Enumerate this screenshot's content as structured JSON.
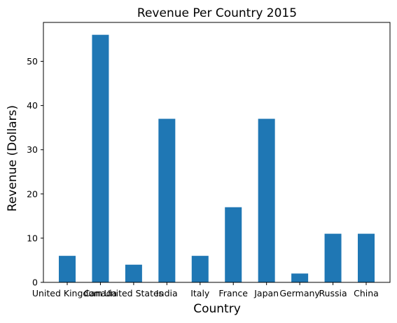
{
  "chart_data": {
    "type": "bar",
    "title": "Revenue Per Country 2015",
    "xlabel": "Country",
    "ylabel": "Revenue (Dollars)",
    "categories": [
      "United Kingdom",
      "Canada",
      "United States",
      "India",
      "Italy",
      "France",
      "Japan",
      "Germany",
      "Russia",
      "China"
    ],
    "values": [
      6,
      56,
      4,
      37,
      6,
      17,
      37,
      2,
      11,
      11
    ],
    "ylim": [
      0,
      58.8
    ],
    "yticks": [
      0,
      10,
      20,
      30,
      40,
      50
    ],
    "grid": false,
    "bar_color": "#1f77b4"
  }
}
